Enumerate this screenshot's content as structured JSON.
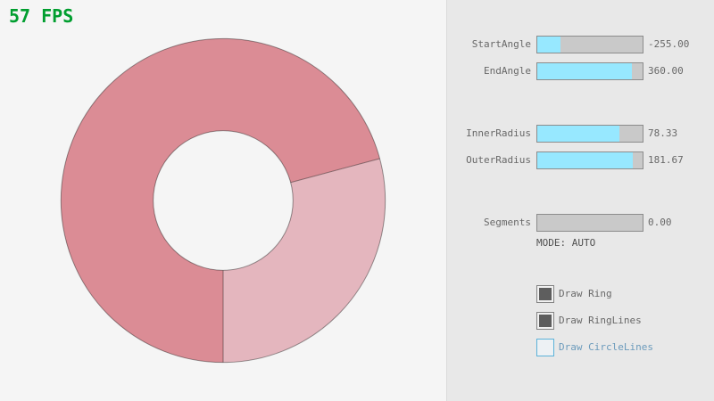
{
  "fps": {
    "label": "57 FPS"
  },
  "ring": {
    "start_angle": -255.0,
    "end_angle": 360.0,
    "inner_radius": 78.33,
    "outer_radius": 181.67,
    "dark_color": "#DB8C95",
    "light_color": "#E4B6BE",
    "line_color": "rgba(0,0,0,0.4)"
  },
  "panel": {
    "sliders": [
      {
        "id": "start-angle",
        "label": "StartAngle",
        "value": "-255.00",
        "fill_pct": 21.7
      },
      {
        "id": "end-angle",
        "label": "EndAngle",
        "value": "360.00",
        "fill_pct": 90.0
      },
      {
        "id": "inner-radius",
        "label": "InnerRadius",
        "value": "78.33",
        "fill_pct": 78.3
      },
      {
        "id": "outer-radius",
        "label": "OuterRadius",
        "value": "181.67",
        "fill_pct": 90.8
      },
      {
        "id": "segments",
        "label": "Segments",
        "value": "0.00",
        "fill_pct": 0
      }
    ],
    "mode_label": "MODE: AUTO",
    "checkboxes": [
      {
        "label": "Draw Ring",
        "checked": true
      },
      {
        "label": "Draw RingLines",
        "checked": true
      },
      {
        "label": "Draw CircleLines",
        "checked": false
      }
    ]
  },
  "colors": {
    "background": "#F5F5F5",
    "panel_background": "#E8E8E8",
    "panel_divider": "#DADADA",
    "slider_fill": "#97E8FF",
    "slider_track": "#C9C9C9",
    "slider_border": "#8C8C8C",
    "label_text": "#686868",
    "mode_text": "#4F4F4F",
    "fps_text": "#009E2F",
    "focused_blue_border": "#5BB2D9",
    "focused_blue_text": "#6C9BBC"
  }
}
